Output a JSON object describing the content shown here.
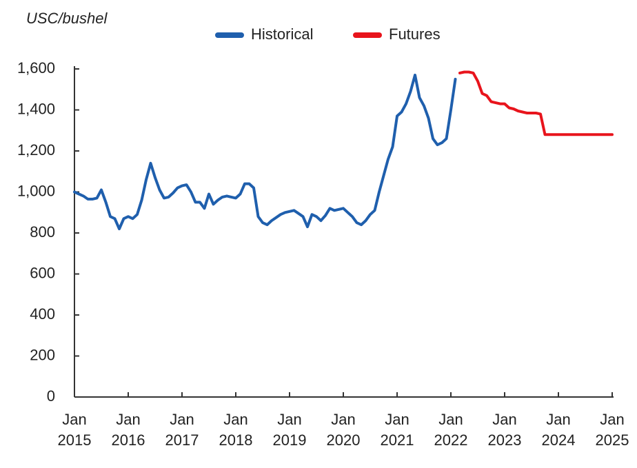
{
  "chart_data": {
    "type": "line",
    "y_axis_label": "USC/bushel",
    "xlim": [
      "2015-01",
      "2025-01"
    ],
    "xticks": [
      {
        "value": "2015-01",
        "label": "Jan 2015"
      },
      {
        "value": "2016-01",
        "label": "Jan 2016"
      },
      {
        "value": "2017-01",
        "label": "Jan 2017"
      },
      {
        "value": "2018-01",
        "label": "Jan 2018"
      },
      {
        "value": "2019-01",
        "label": "Jan 2019"
      },
      {
        "value": "2020-01",
        "label": "Jan 2020"
      },
      {
        "value": "2021-01",
        "label": "Jan 2021"
      },
      {
        "value": "2022-01",
        "label": "Jan 2022"
      },
      {
        "value": "2023-01",
        "label": "Jan 2023"
      },
      {
        "value": "2024-01",
        "label": "Jan 2024"
      },
      {
        "value": "2025-01",
        "label": "Jan 2025"
      }
    ],
    "ylim": [
      0,
      1600
    ],
    "yticks": [
      0,
      200,
      400,
      600,
      800,
      {
        "value": 1000,
        "label": "1,000"
      },
      {
        "value": 1200,
        "label": "1,200"
      },
      {
        "value": 1400,
        "label": "1,400"
      },
      {
        "value": 1600,
        "label": "1,600"
      }
    ],
    "grid": false,
    "legend": "top",
    "series": [
      {
        "name": "Historical",
        "color": "#1f5fad",
        "x": [
          "2015-01",
          "2015-02",
          "2015-03",
          "2015-04",
          "2015-05",
          "2015-06",
          "2015-07",
          "2015-08",
          "2015-09",
          "2015-10",
          "2015-11",
          "2015-12",
          "2016-01",
          "2016-02",
          "2016-03",
          "2016-04",
          "2016-05",
          "2016-06",
          "2016-07",
          "2016-08",
          "2016-09",
          "2016-10",
          "2016-11",
          "2016-12",
          "2017-01",
          "2017-02",
          "2017-03",
          "2017-04",
          "2017-05",
          "2017-06",
          "2017-07",
          "2017-08",
          "2017-09",
          "2017-10",
          "2017-11",
          "2017-12",
          "2018-01",
          "2018-02",
          "2018-03",
          "2018-04",
          "2018-05",
          "2018-06",
          "2018-07",
          "2018-08",
          "2018-09",
          "2018-10",
          "2018-11",
          "2018-12",
          "2019-01",
          "2019-02",
          "2019-03",
          "2019-04",
          "2019-05",
          "2019-06",
          "2019-07",
          "2019-08",
          "2019-09",
          "2019-10",
          "2019-11",
          "2019-12",
          "2020-01",
          "2020-02",
          "2020-03",
          "2020-04",
          "2020-05",
          "2020-06",
          "2020-07",
          "2020-08",
          "2020-09",
          "2020-10",
          "2020-11",
          "2020-12",
          "2021-01",
          "2021-02",
          "2021-03",
          "2021-04",
          "2021-05",
          "2021-06",
          "2021-07",
          "2021-08",
          "2021-09",
          "2021-10",
          "2021-11",
          "2021-12",
          "2022-01",
          "2022-02"
        ],
        "values": [
          1000,
          990,
          980,
          965,
          965,
          970,
          1010,
          950,
          880,
          870,
          820,
          870,
          880,
          870,
          890,
          960,
          1060,
          1140,
          1070,
          1010,
          970,
          975,
          995,
          1020,
          1030,
          1035,
          1000,
          950,
          950,
          920,
          990,
          940,
          960,
          975,
          980,
          975,
          970,
          990,
          1040,
          1040,
          1020,
          880,
          850,
          840,
          860,
          875,
          890,
          900,
          905,
          910,
          895,
          880,
          830,
          890,
          880,
          860,
          885,
          920,
          910,
          915,
          920,
          900,
          880,
          850,
          840,
          860,
          890,
          910,
          1000,
          1080,
          1160,
          1220,
          1370,
          1390,
          1430,
          1490,
          1570,
          1460,
          1420,
          1360,
          1260,
          1230,
          1240,
          1260,
          1400,
          1550
        ]
      },
      {
        "name": "Futures",
        "color": "#e8141c",
        "x": [
          "2022-03",
          "2022-04",
          "2022-05",
          "2022-06",
          "2022-07",
          "2022-08",
          "2022-09",
          "2022-10",
          "2022-11",
          "2022-12",
          "2023-01",
          "2023-02",
          "2023-03",
          "2023-04",
          "2023-05",
          "2023-06",
          "2023-07",
          "2023-08",
          "2023-09",
          "2023-10",
          "2023-11",
          "2023-12",
          "2024-01",
          "2024-02",
          "2024-03",
          "2024-04",
          "2024-05",
          "2024-06",
          "2024-07",
          "2024-08",
          "2024-09",
          "2024-10",
          "2024-11",
          "2024-12",
          "2025-01"
        ],
        "values": [
          1580,
          1585,
          1585,
          1580,
          1540,
          1480,
          1470,
          1440,
          1435,
          1430,
          1430,
          1410,
          1405,
          1395,
          1390,
          1385,
          1385,
          1385,
          1380,
          1280,
          1280,
          1280,
          1280,
          1280,
          1280,
          1280,
          1280,
          1280,
          1280,
          1280,
          1280,
          1280,
          1280,
          1280,
          1280
        ]
      }
    ]
  }
}
